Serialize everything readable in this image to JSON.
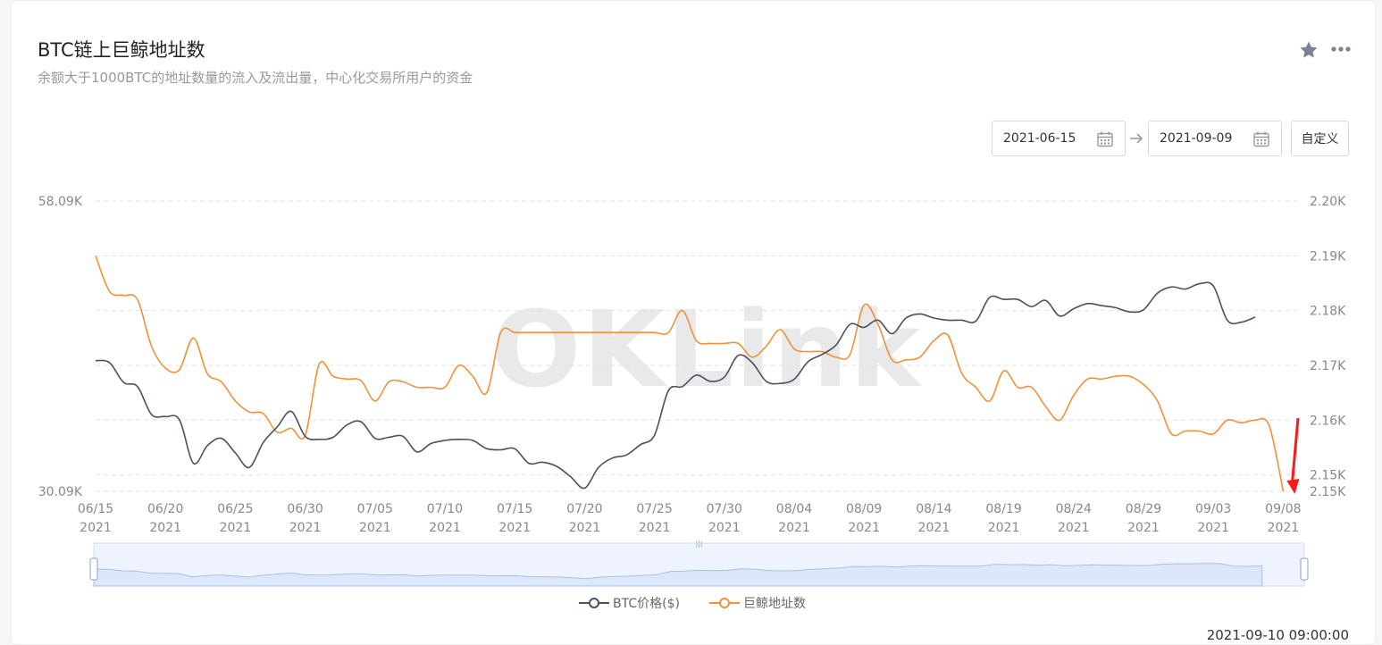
{
  "header": {
    "title": "BTC链上巨鲸地址数",
    "subtitle": "余额大于1000BTC的地址数量的流入及流出量，中心化交易所用户的资金"
  },
  "toolbar": {
    "start_date": "2021-06-15",
    "end_date": "2021-09-09",
    "custom_label": "自定义"
  },
  "watermark": "OKLink",
  "timestamp": "2021-09-10 09:00:00",
  "colors": {
    "btc_price": "#4a4f62",
    "whale_count": "#f0923a",
    "grid": "#e3e3e3",
    "axis_text": "#888888",
    "slider_fill": "#dde7fb",
    "annotation_arrow": "#ff1a1a"
  },
  "chart_data": {
    "type": "line",
    "x_labels": [
      {
        "date": "06/15",
        "year": "2021"
      },
      {
        "date": "06/20",
        "year": "2021"
      },
      {
        "date": "06/25",
        "year": "2021"
      },
      {
        "date": "06/30",
        "year": "2021"
      },
      {
        "date": "07/05",
        "year": "2021"
      },
      {
        "date": "07/10",
        "year": "2021"
      },
      {
        "date": "07/15",
        "year": "2021"
      },
      {
        "date": "07/20",
        "year": "2021"
      },
      {
        "date": "07/25",
        "year": "2021"
      },
      {
        "date": "07/30",
        "year": "2021"
      },
      {
        "date": "08/04",
        "year": "2021"
      },
      {
        "date": "08/09",
        "year": "2021"
      },
      {
        "date": "08/14",
        "year": "2021"
      },
      {
        "date": "08/19",
        "year": "2021"
      },
      {
        "date": "08/24",
        "year": "2021"
      },
      {
        "date": "08/29",
        "year": "2021"
      },
      {
        "date": "09/03",
        "year": "2021"
      },
      {
        "date": "09/08",
        "year": "2021"
      }
    ],
    "x_range": [
      "2021-06-15",
      "2021-09-09"
    ],
    "y_left": {
      "min": 30090,
      "max": 58090,
      "tick_labels": [
        "58.09K",
        "30.09K"
      ]
    },
    "y_right": {
      "min": 2147.0,
      "max": 2200.0,
      "tick_values": [
        2200,
        2190,
        2180,
        2170,
        2160,
        2150,
        2147
      ],
      "tick_labels": [
        "2.20K",
        "2.19K",
        "2.18K",
        "2.17K",
        "2.16K",
        "2.15K",
        "2.15K"
      ]
    },
    "grid": true,
    "legend_position": "bottom",
    "series": [
      {
        "name": "BTC价格($)",
        "axis": "left",
        "points": [
          [
            "2021-06-15",
            42700
          ],
          [
            "2021-06-16",
            42500
          ],
          [
            "2021-06-17",
            40600
          ],
          [
            "2021-06-18",
            40200
          ],
          [
            "2021-06-19",
            37500
          ],
          [
            "2021-06-20",
            37300
          ],
          [
            "2021-06-21",
            37000
          ],
          [
            "2021-06-22",
            32800
          ],
          [
            "2021-06-23",
            34500
          ],
          [
            "2021-06-24",
            35200
          ],
          [
            "2021-06-25",
            33800
          ],
          [
            "2021-06-26",
            32400
          ],
          [
            "2021-06-27",
            34800
          ],
          [
            "2021-06-28",
            36300
          ],
          [
            "2021-06-29",
            37800
          ],
          [
            "2021-06-30",
            35400
          ],
          [
            "2021-07-01",
            35100
          ],
          [
            "2021-07-02",
            35300
          ],
          [
            "2021-07-03",
            36500
          ],
          [
            "2021-07-04",
            36800
          ],
          [
            "2021-07-05",
            35200
          ],
          [
            "2021-07-06",
            35300
          ],
          [
            "2021-07-07",
            35400
          ],
          [
            "2021-07-08",
            33900
          ],
          [
            "2021-07-09",
            34700
          ],
          [
            "2021-07-10",
            35000
          ],
          [
            "2021-07-11",
            35100
          ],
          [
            "2021-07-12",
            35000
          ],
          [
            "2021-07-13",
            34200
          ],
          [
            "2021-07-14",
            34100
          ],
          [
            "2021-07-15",
            34200
          ],
          [
            "2021-07-16",
            32800
          ],
          [
            "2021-07-17",
            32900
          ],
          [
            "2021-07-18",
            32500
          ],
          [
            "2021-07-19",
            31500
          ],
          [
            "2021-07-20",
            30400
          ],
          [
            "2021-07-21",
            32400
          ],
          [
            "2021-07-22",
            33300
          ],
          [
            "2021-07-23",
            33600
          ],
          [
            "2021-07-24",
            34600
          ],
          [
            "2021-07-25",
            35500
          ],
          [
            "2021-07-26",
            39800
          ],
          [
            "2021-07-27",
            40200
          ],
          [
            "2021-07-28",
            41300
          ],
          [
            "2021-07-29",
            40700
          ],
          [
            "2021-07-30",
            41100
          ],
          [
            "2021-07-31",
            43200
          ],
          [
            "2021-08-01",
            42500
          ],
          [
            "2021-08-02",
            40700
          ],
          [
            "2021-08-03",
            40500
          ],
          [
            "2021-08-04",
            40900
          ],
          [
            "2021-08-05",
            42600
          ],
          [
            "2021-08-06",
            43300
          ],
          [
            "2021-08-07",
            44200
          ],
          [
            "2021-08-08",
            46200
          ],
          [
            "2021-08-09",
            45900
          ],
          [
            "2021-08-10",
            46600
          ],
          [
            "2021-08-11",
            45300
          ],
          [
            "2021-08-12",
            46800
          ],
          [
            "2021-08-13",
            47200
          ],
          [
            "2021-08-14",
            46800
          ],
          [
            "2021-08-15",
            46600
          ],
          [
            "2021-08-16",
            46600
          ],
          [
            "2021-08-17",
            46500
          ],
          [
            "2021-08-18",
            48800
          ],
          [
            "2021-08-19",
            48600
          ],
          [
            "2021-08-20",
            48600
          ],
          [
            "2021-08-21",
            47900
          ],
          [
            "2021-08-22",
            48500
          ],
          [
            "2021-08-23",
            47000
          ],
          [
            "2021-08-24",
            47700
          ],
          [
            "2021-08-25",
            48200
          ],
          [
            "2021-08-26",
            48000
          ],
          [
            "2021-08-27",
            47800
          ],
          [
            "2021-08-28",
            47400
          ],
          [
            "2021-08-29",
            47600
          ],
          [
            "2021-08-30",
            49200
          ],
          [
            "2021-08-31",
            49800
          ],
          [
            "2021-09-01",
            49600
          ],
          [
            "2021-09-02",
            50100
          ],
          [
            "2021-09-03",
            49900
          ],
          [
            "2021-09-04",
            46600
          ],
          [
            "2021-09-05",
            46400
          ],
          [
            "2021-09-06",
            46900
          ]
        ]
      },
      {
        "name": "巨鲸地址数",
        "axis": "right",
        "points": [
          [
            "2021-06-15",
            2190.0
          ],
          [
            "2021-06-16",
            2183.5
          ],
          [
            "2021-06-17",
            2182.8
          ],
          [
            "2021-06-18",
            2182.0
          ],
          [
            "2021-06-19",
            2173.5
          ],
          [
            "2021-06-20",
            2169.5
          ],
          [
            "2021-06-21",
            2169.2
          ],
          [
            "2021-06-22",
            2175.0
          ],
          [
            "2021-06-23",
            2168.5
          ],
          [
            "2021-06-24",
            2167.0
          ],
          [
            "2021-06-25",
            2163.5
          ],
          [
            "2021-06-26",
            2161.5
          ],
          [
            "2021-06-27",
            2161.2
          ],
          [
            "2021-06-28",
            2157.8
          ],
          [
            "2021-06-29",
            2158.5
          ],
          [
            "2021-06-30",
            2157.2
          ],
          [
            "2021-07-01",
            2170.2
          ],
          [
            "2021-07-02",
            2168.0
          ],
          [
            "2021-07-03",
            2167.5
          ],
          [
            "2021-07-04",
            2167.2
          ],
          [
            "2021-07-05",
            2163.5
          ],
          [
            "2021-07-06",
            2167.0
          ],
          [
            "2021-07-07",
            2167.0
          ],
          [
            "2021-07-08",
            2166.0
          ],
          [
            "2021-07-09",
            2166.0
          ],
          [
            "2021-07-10",
            2166.0
          ],
          [
            "2021-07-11",
            2170.0
          ],
          [
            "2021-07-12",
            2168.0
          ],
          [
            "2021-07-13",
            2165.0
          ],
          [
            "2021-07-14",
            2176.0
          ],
          [
            "2021-07-15",
            2176.0
          ],
          [
            "2021-07-16",
            2176.0
          ],
          [
            "2021-07-17",
            2176.0
          ],
          [
            "2021-07-18",
            2176.0
          ],
          [
            "2021-07-19",
            2176.0
          ],
          [
            "2021-07-20",
            2176.0
          ],
          [
            "2021-07-21",
            2176.0
          ],
          [
            "2021-07-22",
            2176.0
          ],
          [
            "2021-07-23",
            2176.0
          ],
          [
            "2021-07-24",
            2176.0
          ],
          [
            "2021-07-25",
            2176.0
          ],
          [
            "2021-07-26",
            2176.0
          ],
          [
            "2021-07-27",
            2180.0
          ],
          [
            "2021-07-28",
            2174.5
          ],
          [
            "2021-07-29",
            2174.0
          ],
          [
            "2021-07-30",
            2174.0
          ],
          [
            "2021-07-31",
            2174.0
          ],
          [
            "2021-08-01",
            2171.5
          ],
          [
            "2021-08-02",
            2173.5
          ],
          [
            "2021-08-03",
            2176.5
          ],
          [
            "2021-08-04",
            2173.0
          ],
          [
            "2021-08-05",
            2172.5
          ],
          [
            "2021-08-06",
            2172.5
          ],
          [
            "2021-08-07",
            2171.5
          ],
          [
            "2021-08-08",
            2172.0
          ],
          [
            "2021-08-09",
            2181.0
          ],
          [
            "2021-08-10",
            2177.5
          ],
          [
            "2021-08-11",
            2171.0
          ],
          [
            "2021-08-12",
            2171.0
          ],
          [
            "2021-08-13",
            2171.5
          ],
          [
            "2021-08-14",
            2174.5
          ],
          [
            "2021-08-15",
            2175.5
          ],
          [
            "2021-08-16",
            2168.5
          ],
          [
            "2021-08-17",
            2166.0
          ],
          [
            "2021-08-18",
            2163.5
          ],
          [
            "2021-08-19",
            2169.0
          ],
          [
            "2021-08-20",
            2166.0
          ],
          [
            "2021-08-21",
            2166.0
          ],
          [
            "2021-08-22",
            2162.5
          ],
          [
            "2021-08-23",
            2160.0
          ],
          [
            "2021-08-24",
            2164.5
          ],
          [
            "2021-08-25",
            2167.5
          ],
          [
            "2021-08-26",
            2167.5
          ],
          [
            "2021-08-27",
            2168.0
          ],
          [
            "2021-08-28",
            2168.0
          ],
          [
            "2021-08-29",
            2166.5
          ],
          [
            "2021-08-30",
            2163.5
          ],
          [
            "2021-08-31",
            2157.5
          ],
          [
            "2021-09-01",
            2158.0
          ],
          [
            "2021-09-02",
            2158.0
          ],
          [
            "2021-09-03",
            2157.5
          ],
          [
            "2021-09-04",
            2160.0
          ],
          [
            "2021-09-05",
            2159.5
          ],
          [
            "2021-09-06",
            2160.0
          ],
          [
            "2021-09-07",
            2159.0
          ],
          [
            "2021-09-08",
            2147.0
          ]
        ]
      }
    ]
  }
}
